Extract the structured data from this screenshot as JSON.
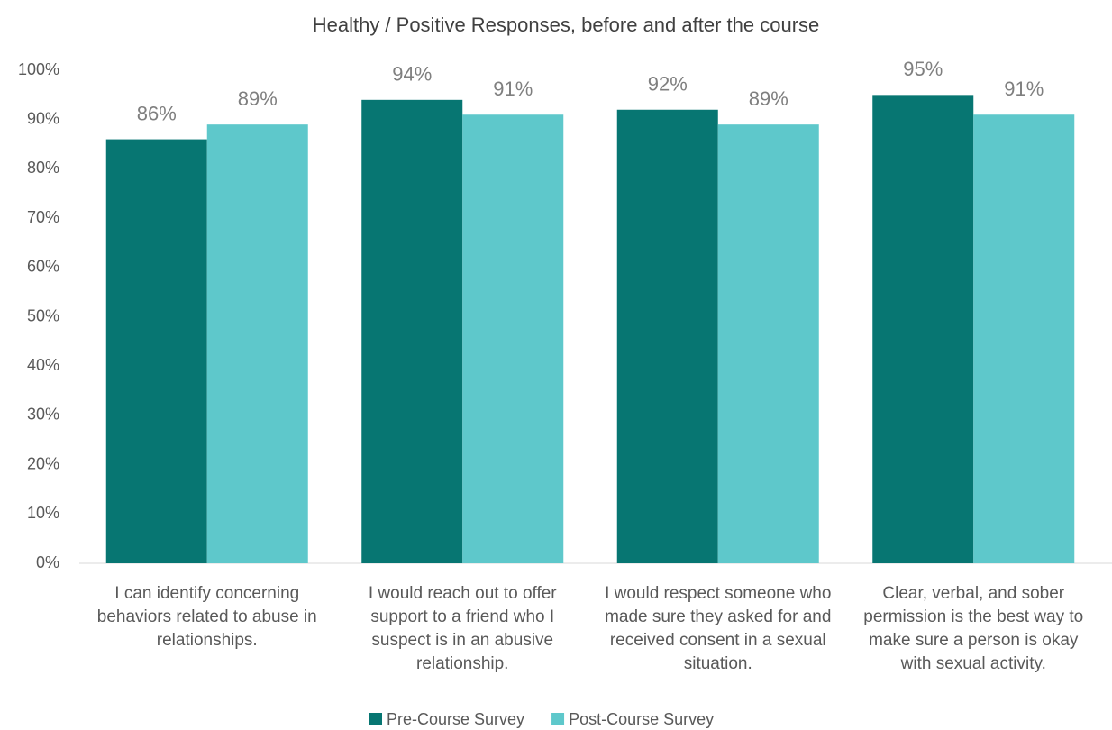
{
  "chart_data": {
    "type": "bar",
    "title": "Healthy / Positive Responses, before and after the course",
    "categories": [
      "I can identify concerning behaviors related to abuse in relationships.",
      "I would reach out to offer support to a friend who I suspect is in an abusive relationship.",
      "I would respect someone who made sure they asked for and received consent in a sexual situation.",
      "Clear, verbal, and sober permission is the best way to make sure a person is okay with sexual activity."
    ],
    "series": [
      {
        "name": "Pre-Course Survey",
        "color": "#077672",
        "values": [
          86,
          94,
          92,
          95
        ],
        "value_labels": [
          "86%",
          "94%",
          "92%",
          "95%"
        ]
      },
      {
        "name": "Post-Course Survey",
        "color": "#5ec8cb",
        "values": [
          89,
          91,
          89,
          91
        ],
        "value_labels": [
          "89%",
          "91%",
          "89%",
          "91%"
        ]
      }
    ],
    "ylim": [
      0,
      100
    ],
    "yticks": [
      {
        "value": 0,
        "label": "0%"
      },
      {
        "value": 10,
        "label": "10%"
      },
      {
        "value": 20,
        "label": "20%"
      },
      {
        "value": 30,
        "label": "30%"
      },
      {
        "value": 40,
        "label": "40%"
      },
      {
        "value": 50,
        "label": "50%"
      },
      {
        "value": 60,
        "label": "60%"
      },
      {
        "value": 70,
        "label": "70%"
      },
      {
        "value": 80,
        "label": "80%"
      },
      {
        "value": 90,
        "label": "90%"
      },
      {
        "value": 100,
        "label": "100%"
      }
    ],
    "legend": "bottom"
  }
}
